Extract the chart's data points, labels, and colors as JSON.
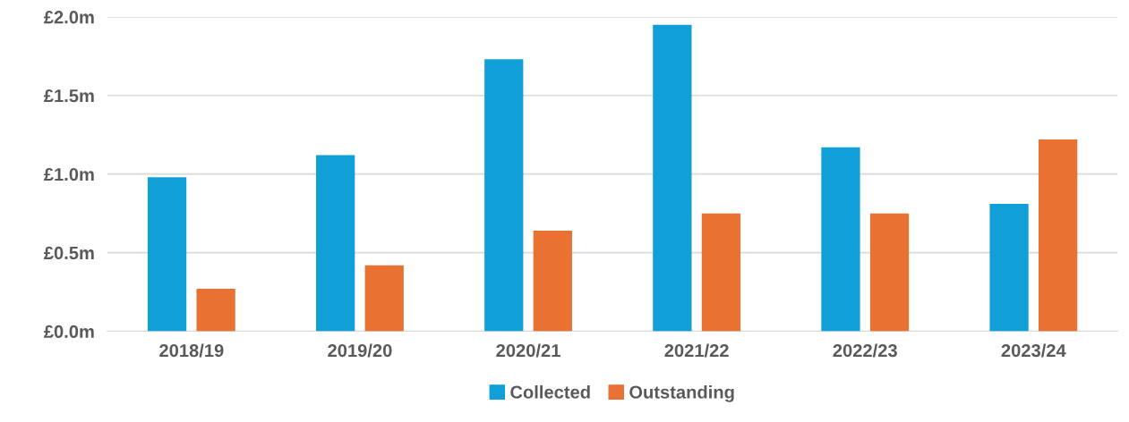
{
  "chart_data": {
    "type": "bar",
    "categories": [
      "2018/19",
      "2019/20",
      "2020/21",
      "2021/22",
      "2022/23",
      "2023/24"
    ],
    "series": [
      {
        "name": "Collected",
        "color": "#109fd6",
        "values": [
          0.98,
          1.12,
          1.73,
          1.95,
          1.17,
          0.81
        ]
      },
      {
        "name": "Outstanding",
        "color": "#e97132",
        "values": [
          0.27,
          0.42,
          0.64,
          0.75,
          0.75,
          1.22
        ]
      }
    ],
    "ylim": [
      0,
      2.0
    ],
    "yticks": [
      {
        "value": 0,
        "label": "£0.0m"
      },
      {
        "value": 0.5,
        "label": "£0.5m"
      },
      {
        "value": 1.0,
        "label": "£1.0m"
      },
      {
        "value": 1.5,
        "label": "£1.5m"
      },
      {
        "value": 2.0,
        "label": "£2.0m"
      }
    ],
    "grid": "y",
    "legend": "bottom"
  }
}
